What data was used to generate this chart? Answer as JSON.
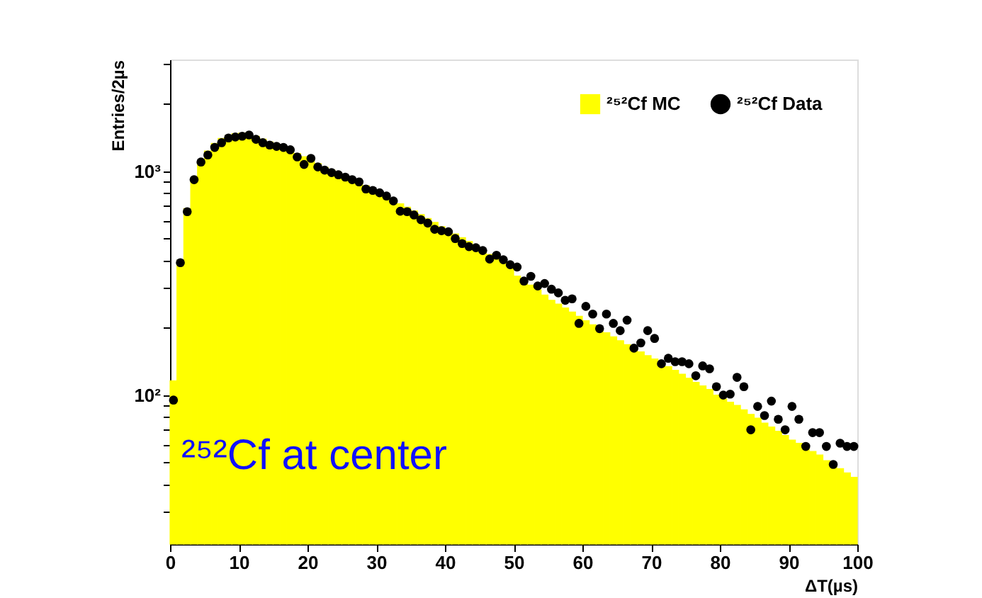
{
  "chart_data": {
    "type": "histogram",
    "xlabel": "ΔT(µs)",
    "ylabel": "Entries/2µs",
    "annotations": [
      "²⁵²Cf at center"
    ],
    "bins": [
      0,
      1,
      2,
      3,
      4,
      5,
      6,
      7,
      8,
      9,
      10,
      11,
      12,
      13,
      14,
      15,
      16,
      17,
      18,
      19,
      20,
      21,
      22,
      23,
      24,
      25,
      26,
      27,
      28,
      29,
      30,
      31,
      32,
      33,
      34,
      35,
      36,
      37,
      38,
      39,
      40,
      41,
      42,
      43,
      44,
      45,
      46,
      47,
      48,
      49,
      50,
      51,
      52,
      53,
      54,
      55,
      56,
      57,
      58,
      59,
      60,
      61,
      62,
      63,
      64,
      65,
      66,
      67,
      68,
      69,
      70,
      71,
      72,
      73,
      74,
      75,
      76,
      77,
      78,
      79,
      80,
      81,
      82,
      83,
      84,
      85,
      86,
      87,
      88,
      89,
      90,
      91,
      92,
      93,
      94,
      95,
      96,
      97,
      98,
      99,
      100
    ],
    "series": [
      {
        "name": "²⁵²Cf MC",
        "color": "#ffff00",
        "values": [
          116,
          400,
          680,
          930,
          1110,
          1230,
          1330,
          1400,
          1440,
          1470,
          1480,
          1470,
          1430,
          1390,
          1350,
          1310,
          1280,
          1240,
          1200,
          1160,
          1120,
          1080,
          1040,
          1010,
          980,
          950,
          920,
          890,
          860,
          830,
          800,
          770,
          740,
          715,
          690,
          665,
          640,
          615,
          590,
          565,
          545,
          525,
          505,
          485,
          465,
          445,
          425,
          405,
          388,
          370,
          340,
          325,
          310,
          295,
          280,
          265,
          255,
          245,
          235,
          225,
          215,
          206,
          198,
          190,
          182,
          175,
          168,
          162,
          156,
          150,
          145,
          139,
          134,
          129,
          124,
          119,
          114,
          110,
          106,
          100,
          96,
          93,
          90,
          86,
          82,
          79,
          75,
          72,
          69,
          66,
          63,
          61,
          59,
          56,
          54,
          51,
          49,
          47,
          45,
          43
        ]
      },
      {
        "name": "²⁵²Cf Data",
        "type": "scatter",
        "color": "#000000",
        "x": [
          0.5,
          1.5,
          2.5,
          3.5,
          4.5,
          5.5,
          6.5,
          7.5,
          8.5,
          9.5,
          10.5,
          11.5,
          12.5,
          13.5,
          14.5,
          15.5,
          16.5,
          17.5,
          18.5,
          19.5,
          20.5,
          21.5,
          22.5,
          23.5,
          24.5,
          25.5,
          26.5,
          27.5,
          28.5,
          29.5,
          30.5,
          31.5,
          32.5,
          33.5,
          34.5,
          35.5,
          36.5,
          37.5,
          38.5,
          39.5,
          40.5,
          41.5,
          42.5,
          43.5,
          44.5,
          45.5,
          46.5,
          47.5,
          48.5,
          49.5,
          50.5,
          51.5,
          52.5,
          53.5,
          54.5,
          55.5,
          56.5,
          57.5,
          58.5,
          59.5,
          60.5,
          61.5,
          62.5,
          63.5,
          64.5,
          65.5,
          66.5,
          67.5,
          68.5,
          69.5,
          70.5,
          71.5,
          72.5,
          73.5,
          74.5,
          75.5,
          76.5,
          77.5,
          78.5,
          79.5,
          80.5,
          81.5,
          82.5,
          83.5,
          84.5,
          85.5,
          86.5,
          87.5,
          88.5,
          89.5,
          90.5,
          91.5,
          92.5,
          93.5,
          94.5,
          95.5,
          96.5,
          97.5,
          98.5,
          99.5
        ],
        "values": [
          95,
          390,
          659,
          916,
          1098,
          1180,
          1276,
          1339,
          1406,
          1420,
          1432,
          1450,
          1387,
          1339,
          1307,
          1290,
          1276,
          1245,
          1157,
          1071,
          1140,
          1044,
          1010,
          985,
          963,
          940,
          916,
          895,
          832,
          820,
          800,
          774,
          736,
          662,
          659,
          637,
          607,
          586,
          550,
          542,
          536,
          500,
          475,
          460,
          455,
          442,
          405,
          421,
          402,
          382,
          373,
          323,
          339,
          307,
          315,
          297,
          286,
          265,
          269,
          209,
          249,
          230,
          198,
          230,
          209,
          194,
          216,
          162,
          171,
          194,
          179,
          138,
          146,
          141,
          141,
          138,
          122,
          135,
          131,
          109,
          100,
          101,
          120,
          109,
          70,
          89,
          81,
          94,
          78,
          70,
          89,
          78,
          59,
          68,
          68,
          59,
          49,
          61,
          59,
          59
        ]
      }
    ],
    "xlim": [
      0,
      100
    ],
    "xticks": [
      0,
      10,
      20,
      30,
      40,
      50,
      60,
      70,
      80,
      90,
      100
    ],
    "ylim": [
      21.6,
      3150
    ],
    "log": true,
    "yticks": [
      {
        "value": 30,
        "label": null
      },
      {
        "value": 40,
        "label": null
      },
      {
        "value": 50,
        "label": null
      },
      {
        "value": 60,
        "label": null
      },
      {
        "value": 70,
        "label": null
      },
      {
        "value": 80,
        "label": null
      },
      {
        "value": 90,
        "label": null
      },
      {
        "value": 100,
        "label": "10²"
      },
      {
        "value": 200,
        "label": null
      },
      {
        "value": 300,
        "label": null
      },
      {
        "value": 400,
        "label": null
      },
      {
        "value": 500,
        "label": null
      },
      {
        "value": 600,
        "label": null
      },
      {
        "value": 700,
        "label": null
      },
      {
        "value": 800,
        "label": null
      },
      {
        "value": 900,
        "label": null
      },
      {
        "value": 1000,
        "label": "10³"
      },
      {
        "value": 2000,
        "label": null
      },
      {
        "value": 3000,
        "label": null
      }
    ],
    "grid": false,
    "legend": "top right",
    "marker": "circle"
  }
}
